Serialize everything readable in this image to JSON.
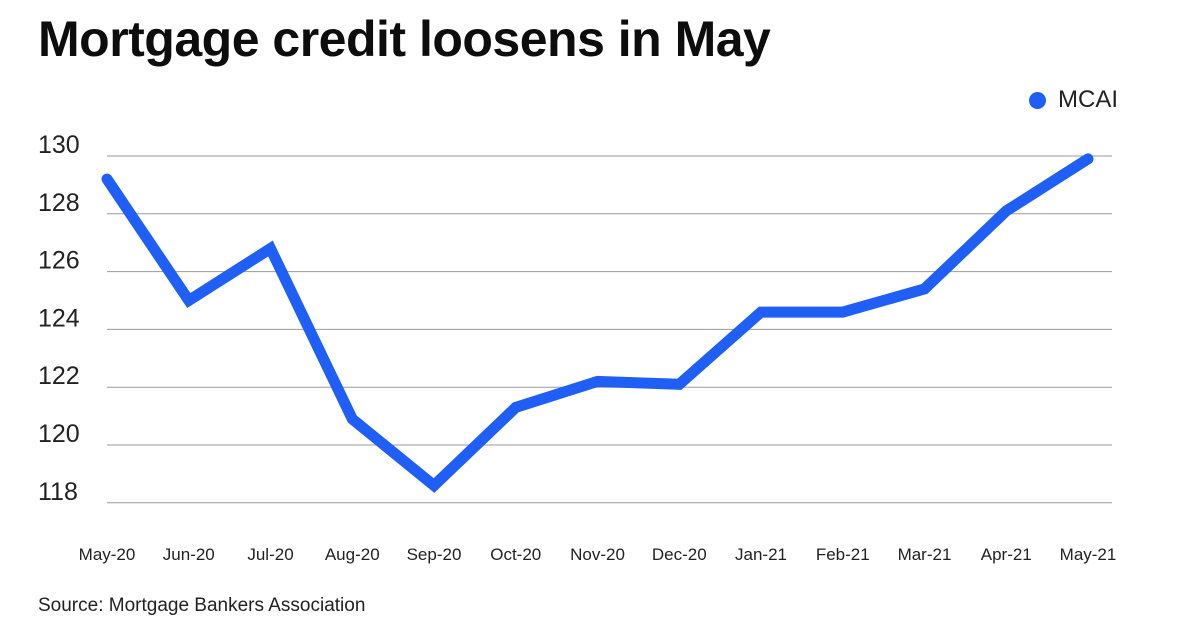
{
  "title": "Mortgage credit loosens in May",
  "source": "Source: Mortgage Bankers Association",
  "colors": {
    "series": "#1f5ff5",
    "grid": "#9a9a9a"
  },
  "chart_data": {
    "type": "line",
    "title": "Mortgage credit loosens in May",
    "xlabel": "",
    "ylabel": "",
    "categories": [
      "May-20",
      "Jun-20",
      "Jul-20",
      "Aug-20",
      "Sep-20",
      "Oct-20",
      "Nov-20",
      "Dec-20",
      "Jan-21",
      "Feb-21",
      "Mar-21",
      "Apr-21",
      "May-21"
    ],
    "series": [
      {
        "name": "MCAI",
        "values": [
          129.2,
          125.0,
          126.8,
          120.9,
          118.6,
          121.3,
          122.2,
          122.1,
          124.6,
          124.6,
          125.4,
          128.1,
          129.9
        ]
      }
    ],
    "yticks": [
      118,
      120,
      122,
      124,
      126,
      128,
      130
    ],
    "ylim": [
      117.5,
      130
    ],
    "grid": true,
    "legend_position": "top-right"
  }
}
